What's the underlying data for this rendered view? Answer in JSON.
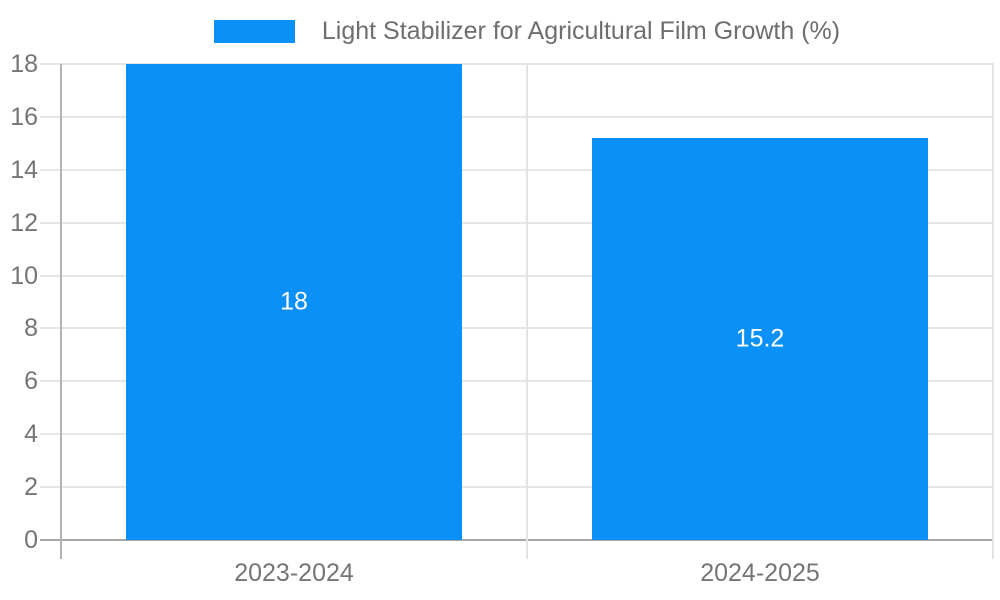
{
  "chart_data": {
    "type": "bar",
    "title": "",
    "legend": {
      "label": "Light Stabilizer for Agricultural Film Growth (%)",
      "position": "top"
    },
    "categories": [
      "2023-2024",
      "2024-2025"
    ],
    "series": [
      {
        "name": "Light Stabilizer for Agricultural Film Growth (%)",
        "values": [
          18,
          15.2
        ]
      }
    ],
    "bar_value_labels": [
      "18",
      "15.2"
    ],
    "xlabel": "",
    "ylabel": "",
    "ylim": [
      0,
      18
    ],
    "yticks": [
      0,
      2,
      4,
      6,
      8,
      10,
      12,
      14,
      16,
      18
    ],
    "ytick_labels": [
      "0",
      "2",
      "4",
      "6",
      "8",
      "10",
      "12",
      "14",
      "16",
      "18"
    ],
    "grid": true,
    "colors": {
      "bar": "#0a90f6",
      "grid": "#e6e6e6",
      "axis_line": "#b3b3b3",
      "baseline": "#a6a6a6",
      "category_divider": "#e3e3e3",
      "tick_label": "#757575",
      "legend_text": "#6e6e6e",
      "bar_label_text": "#ffffff",
      "background": "#ffffff"
    }
  }
}
